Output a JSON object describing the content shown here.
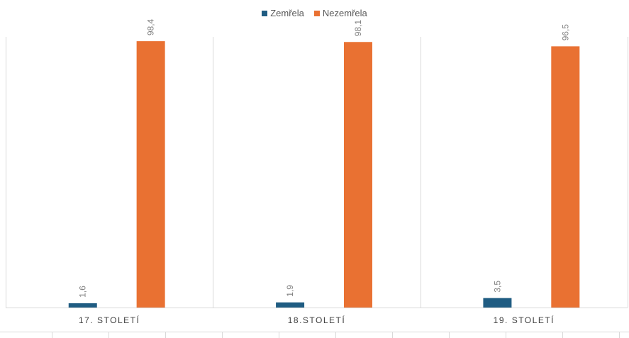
{
  "chart_data": {
    "type": "bar",
    "categories": [
      "17. STOLETÍ",
      "18.STOLETÍ",
      "19. STOLETÍ"
    ],
    "series": [
      {
        "name": "Zemřela",
        "values": [
          1.6,
          1.9,
          3.5
        ],
        "labels": [
          "1,6",
          "1,9",
          "3,5"
        ],
        "color": "#1F5C82"
      },
      {
        "name": "Nezemřela",
        "values": [
          98.4,
          98.1,
          96.5
        ],
        "labels": [
          "98,4",
          "98,1",
          "96,5"
        ],
        "color": "#E97132"
      }
    ],
    "ylim": [
      0,
      100
    ],
    "grid": false,
    "legend_position": "top"
  }
}
